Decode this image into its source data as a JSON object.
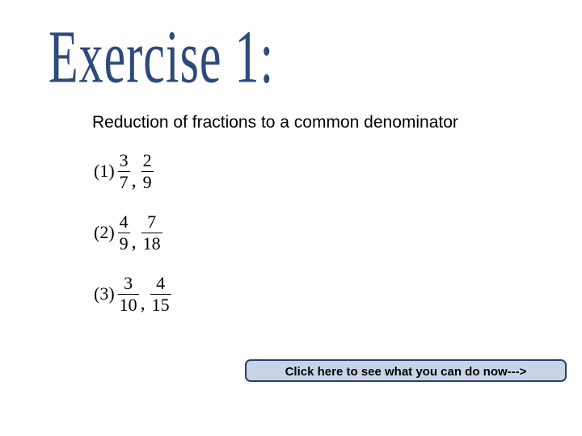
{
  "title": {
    "text": "Exercise 1:",
    "color": "#2d4a7a",
    "font_family": "Times New Roman",
    "font_size_pt": 60
  },
  "subtitle": {
    "text": "Reduction of fractions to a common denominator",
    "font_size_pt": 21,
    "color": "#000000"
  },
  "problems": [
    {
      "label": "(1)",
      "fractions": [
        {
          "num": "3",
          "den": "7"
        },
        {
          "num": "2",
          "den": "9"
        }
      ]
    },
    {
      "label": "(2)",
      "fractions": [
        {
          "num": "4",
          "den": "9"
        },
        {
          "num": "7",
          "den": "18"
        }
      ]
    },
    {
      "label": "(3)",
      "fractions": [
        {
          "num": "3",
          "den": "10"
        },
        {
          "num": "4",
          "den": "15"
        }
      ]
    }
  ],
  "cta": {
    "label": "Click here to see what you can do now--->",
    "bg_color": "#c7d4e8",
    "border_color": "#2a3f6b",
    "text_color": "#000000"
  }
}
